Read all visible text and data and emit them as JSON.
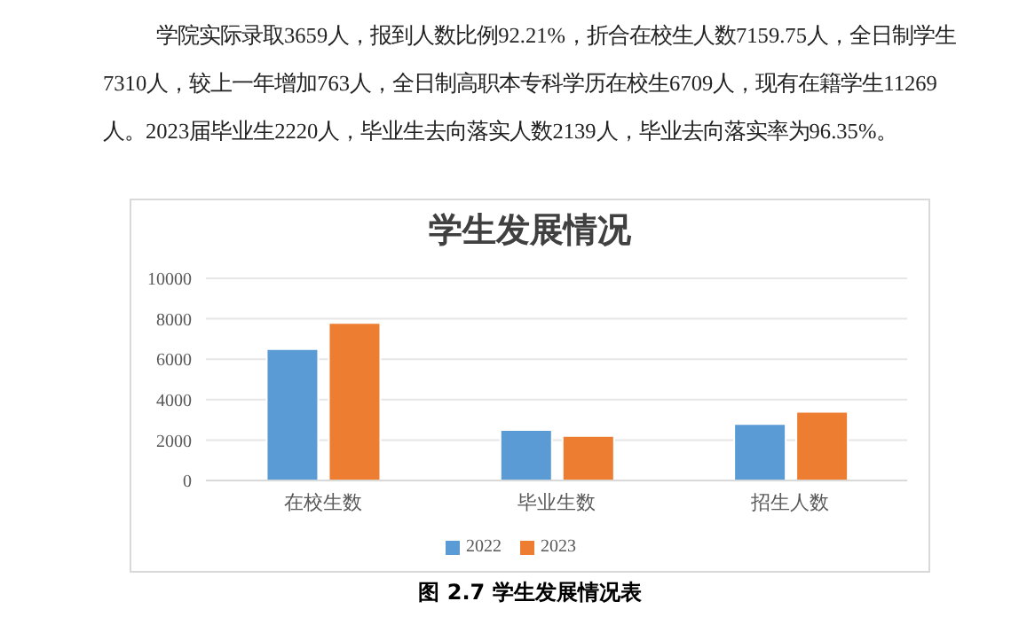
{
  "chart_data": {
    "type": "bar",
    "title": "学生发展情况",
    "categories": [
      "在校生数",
      "毕业生数",
      "招生人数"
    ],
    "series": [
      {
        "name": "2022",
        "color": "#5b9bd5",
        "values": [
          6500,
          2500,
          2800
        ]
      },
      {
        "name": "2023",
        "color": "#ed7d31",
        "values": [
          7800,
          2200,
          3400
        ]
      }
    ],
    "ylim": [
      0,
      10000
    ],
    "yticks": [
      0,
      2000,
      4000,
      6000,
      8000,
      10000
    ],
    "grid": "y",
    "legend": "bottom",
    "annotations": [
      "学院实际录取3659人，报到人数比例92.21%，折合在校生人数7159.75人，全日制学生",
      "7310人，较上一年增加763人，全日制高职本专科学历在校生6709人，现有在籍学生11269",
      "人。2023届毕业生2220人，毕业生去向落实人数2139人，毕业去向落实率为96.35%。",
      "图 2.7 学生发展情况表"
    ]
  }
}
